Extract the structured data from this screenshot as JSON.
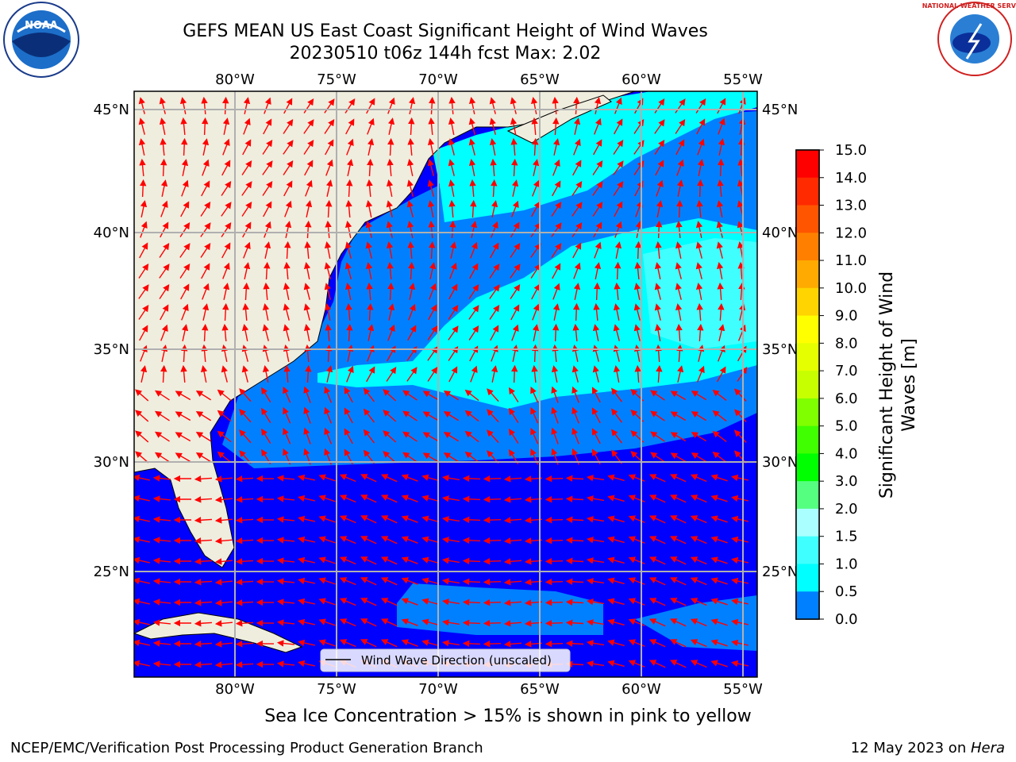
{
  "title": {
    "line1": "GEFS MEAN US East Coast Significant Height of Wind Waves",
    "line2": "20230510 t06z 144h fcst   Max: 2.02"
  },
  "map": {
    "lon_labels": [
      "80°W",
      "75°W",
      "70°W",
      "65°W",
      "60°W",
      "55°W"
    ],
    "lat_labels": [
      "45°N",
      "40°N",
      "35°N",
      "30°N",
      "25°N"
    ],
    "lon_values": [
      -80,
      -75,
      -70,
      -65,
      -60,
      -55
    ],
    "lat_values": [
      45,
      40,
      35,
      30,
      25
    ],
    "legend_label": "Wind Wave Direction (unscaled)",
    "colors": {
      "land": "#efedde",
      "water_0": "#0000ff",
      "water_05": "#0080ff",
      "water_1": "#00ffff",
      "water_15": "#40ffff",
      "arrow": "#ff0000",
      "grid": "#b0b0b0"
    }
  },
  "colorbar": {
    "label": "Significant Height of Wind Waves [m]",
    "ticks": [
      "15.0",
      "14.0",
      "13.0",
      "12.0",
      "11.0",
      "10.0",
      "9.0",
      "8.0",
      "7.0",
      "6.0",
      "5.0",
      "4.0",
      "3.0",
      "2.0",
      "1.5",
      "1.0",
      "0.5",
      "0.0"
    ],
    "colors": [
      "#ff0000",
      "#ff2a00",
      "#ff5500",
      "#ff8000",
      "#ffaa00",
      "#ffd400",
      "#ffff00",
      "#e5ff00",
      "#c8ff00",
      "#80ff00",
      "#40ff00",
      "#00ff00",
      "#55ff80",
      "#aaffff",
      "#40ffff",
      "#00ffff",
      "#0080ff",
      "#0000ff"
    ]
  },
  "logos": {
    "noaa_text": "NOAA",
    "nws_text": "NATIONAL WEATHER SERVICE"
  },
  "footer": {
    "ice_note": "Sea Ice Concentration > 15% is shown in pink to yellow",
    "left": "NCEP/EMC/Verification Post Processing Product Generation Branch",
    "right_date": "12 May 2023 on ",
    "right_host": "Hera"
  }
}
